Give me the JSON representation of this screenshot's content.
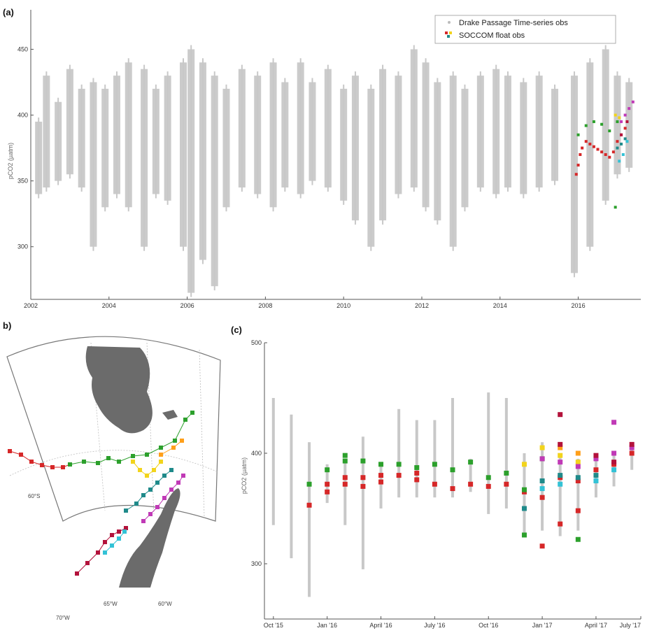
{
  "panels": {
    "a": {
      "label": "(a)"
    },
    "b": {
      "label": "b)"
    },
    "c": {
      "label": "(c)"
    }
  },
  "legend": {
    "dpts": "Drake Passage Time-series obs",
    "soccom": "SOCCOM float obs"
  },
  "map": {
    "lat_labels": [
      "60°S"
    ],
    "lon_labels": [
      "70°W",
      "65°W",
      "60°W"
    ],
    "colors": {
      "land": "#6b6b6b",
      "grid": "#bdbdbd"
    }
  },
  "colors": {
    "dpts": "#c8c8c8",
    "red": "#d62728",
    "green": "#2ca02c",
    "yellow": "#f2d41c",
    "orange": "#ff9f1a",
    "teal": "#1f8a8a",
    "cyan": "#33c2d6",
    "magenta": "#c039b6",
    "crimson": "#b3123b"
  },
  "chart_data": [
    {
      "panel": "a",
      "type": "scatter",
      "title": "",
      "ylabel": "pCO2 (µatm)",
      "xlabel": "",
      "xlim": [
        2002,
        2017.6
      ],
      "ylim": [
        260,
        480
      ],
      "xticks": [
        "2002",
        "2004",
        "2006",
        "2008",
        "2010",
        "2012",
        "2014",
        "2016"
      ],
      "yticks": [
        "300",
        "350",
        "400",
        "450"
      ],
      "legend_position": "top-right",
      "series": [
        {
          "name": "Drake Passage Time-series obs",
          "kind": "range_bars",
          "ranges": [
            [
              2002.2,
              340,
              395
            ],
            [
              2002.4,
              345,
              430
            ],
            [
              2002.7,
              350,
              410
            ],
            [
              2003.0,
              355,
              435
            ],
            [
              2003.3,
              345,
              420
            ],
            [
              2003.6,
              300,
              425
            ],
            [
              2003.9,
              330,
              420
            ],
            [
              2004.2,
              340,
              430
            ],
            [
              2004.5,
              330,
              440
            ],
            [
              2004.9,
              300,
              435
            ],
            [
              2005.2,
              340,
              420
            ],
            [
              2005.5,
              335,
              430
            ],
            [
              2005.9,
              300,
              440
            ],
            [
              2006.1,
              265,
              450
            ],
            [
              2006.4,
              290,
              440
            ],
            [
              2006.7,
              270,
              430
            ],
            [
              2007.0,
              330,
              420
            ],
            [
              2007.4,
              345,
              435
            ],
            [
              2007.8,
              340,
              430
            ],
            [
              2008.2,
              330,
              440
            ],
            [
              2008.5,
              345,
              425
            ],
            [
              2008.9,
              340,
              440
            ],
            [
              2009.2,
              350,
              425
            ],
            [
              2009.6,
              345,
              435
            ],
            [
              2010.0,
              335,
              420
            ],
            [
              2010.3,
              320,
              430
            ],
            [
              2010.7,
              300,
              420
            ],
            [
              2011.0,
              320,
              435
            ],
            [
              2011.4,
              340,
              430
            ],
            [
              2011.8,
              345,
              450
            ],
            [
              2012.1,
              330,
              440
            ],
            [
              2012.4,
              320,
              425
            ],
            [
              2012.8,
              300,
              430
            ],
            [
              2013.1,
              330,
              420
            ],
            [
              2013.5,
              345,
              430
            ],
            [
              2013.9,
              340,
              435
            ],
            [
              2014.2,
              345,
              430
            ],
            [
              2014.6,
              340,
              425
            ],
            [
              2015.0,
              345,
              430
            ],
            [
              2015.4,
              350,
              420
            ],
            [
              2015.9,
              280,
              430
            ],
            [
              2016.3,
              300,
              440
            ],
            [
              2016.7,
              335,
              450
            ],
            [
              2017.0,
              355,
              430
            ],
            [
              2017.3,
              360,
              425
            ]
          ]
        },
        {
          "name": "SOCCOM float obs",
          "kind": "colored_points",
          "points": [
            [
              2015.95,
              355,
              "red"
            ],
            [
              2016.0,
              362,
              "red"
            ],
            [
              2016.05,
              370,
              "red"
            ],
            [
              2016.1,
              375,
              "red"
            ],
            [
              2016.2,
              380,
              "red"
            ],
            [
              2016.3,
              378,
              "red"
            ],
            [
              2016.4,
              376,
              "red"
            ],
            [
              2016.5,
              374,
              "red"
            ],
            [
              2016.6,
              372,
              "red"
            ],
            [
              2016.7,
              370,
              "red"
            ],
            [
              2016.8,
              368,
              "red"
            ],
            [
              2016.9,
              372,
              "red"
            ],
            [
              2017.0,
              380,
              "red"
            ],
            [
              2017.1,
              385,
              "red"
            ],
            [
              2017.2,
              390,
              "red"
            ],
            [
              2016.0,
              385,
              "green"
            ],
            [
              2016.2,
              392,
              "green"
            ],
            [
              2016.4,
              395,
              "green"
            ],
            [
              2016.6,
              393,
              "green"
            ],
            [
              2016.8,
              388,
              "green"
            ],
            [
              2017.0,
              395,
              "green"
            ],
            [
              2016.95,
              330,
              "green"
            ],
            [
              2016.95,
              400,
              "yellow"
            ],
            [
              2017.05,
              398,
              "yellow"
            ],
            [
              2017.0,
              375,
              "teal"
            ],
            [
              2017.1,
              378,
              "teal"
            ],
            [
              2017.2,
              382,
              "teal"
            ],
            [
              2017.05,
              365,
              "cyan"
            ],
            [
              2017.15,
              370,
              "cyan"
            ],
            [
              2017.25,
              380,
              "cyan"
            ],
            [
              2017.1,
              395,
              "magenta"
            ],
            [
              2017.2,
              400,
              "magenta"
            ],
            [
              2017.3,
              405,
              "magenta"
            ],
            [
              2017.4,
              410,
              "magenta"
            ],
            [
              2017.1,
              385,
              "crimson"
            ],
            [
              2017.25,
              395,
              "crimson"
            ]
          ]
        }
      ]
    },
    {
      "panel": "c",
      "type": "scatter",
      "title": "",
      "ylabel": "pCO2 (µatm)",
      "xlabel": "",
      "xlim": [
        0,
        21
      ],
      "ylim": [
        250,
        500
      ],
      "xticks": [
        {
          "label": "Oct '15",
          "pos": 0.5
        },
        {
          "label": "Jan '16",
          "pos": 3.5
        },
        {
          "label": "April '16",
          "pos": 6.5
        },
        {
          "label": "July '16",
          "pos": 9.5
        },
        {
          "label": "Oct '16",
          "pos": 12.5
        },
        {
          "label": "Jan '17",
          "pos": 15.5
        },
        {
          "label": "April '17",
          "pos": 18.5
        },
        {
          "label": "July '17",
          "pos": 21
        }
      ],
      "yticks": [
        "300",
        "400",
        "500"
      ],
      "series": [
        {
          "name": "Drake Passage Time-series obs",
          "kind": "range_bars",
          "ranges": [
            [
              0.5,
              335,
              450
            ],
            [
              1.5,
              305,
              435
            ],
            [
              2.5,
              270,
              410
            ],
            [
              3.5,
              355,
              390
            ],
            [
              4.5,
              335,
              395
            ],
            [
              5.5,
              295,
              415
            ],
            [
              6.5,
              350,
              390
            ],
            [
              7.5,
              360,
              440
            ],
            [
              8.5,
              360,
              430
            ],
            [
              9.5,
              360,
              430
            ],
            [
              10.5,
              360,
              450
            ],
            [
              11.5,
              365,
              395
            ],
            [
              12.5,
              345,
              455
            ],
            [
              13.5,
              350,
              450
            ],
            [
              14.5,
              325,
              400
            ],
            [
              15.5,
              330,
              410
            ],
            [
              16.5,
              325,
              400
            ],
            [
              17.5,
              330,
              395
            ],
            [
              18.5,
              360,
              395
            ],
            [
              19.5,
              370,
              400
            ],
            [
              20.5,
              385,
              410
            ]
          ]
        },
        {
          "name": "SOCCOM float obs",
          "kind": "colored_points",
          "points": [
            [
              2.5,
              353,
              "red"
            ],
            [
              3.5,
              365,
              "red"
            ],
            [
              3.5,
              372,
              "red"
            ],
            [
              4.5,
              372,
              "red"
            ],
            [
              4.5,
              378,
              "red"
            ],
            [
              5.5,
              370,
              "red"
            ],
            [
              5.5,
              378,
              "red"
            ],
            [
              6.5,
              374,
              "red"
            ],
            [
              6.5,
              380,
              "red"
            ],
            [
              7.5,
              380,
              "red"
            ],
            [
              8.5,
              376,
              "red"
            ],
            [
              8.5,
              382,
              "red"
            ],
            [
              9.5,
              372,
              "red"
            ],
            [
              10.5,
              368,
              "red"
            ],
            [
              11.5,
              372,
              "red"
            ],
            [
              12.5,
              370,
              "red"
            ],
            [
              13.5,
              372,
              "red"
            ],
            [
              14.5,
              365,
              "red"
            ],
            [
              15.5,
              360,
              "red"
            ],
            [
              15.5,
              316,
              "red"
            ],
            [
              16.5,
              336,
              "red"
            ],
            [
              16.5,
              378,
              "red"
            ],
            [
              17.5,
              348,
              "red"
            ],
            [
              17.5,
              375,
              "red"
            ],
            [
              18.5,
              385,
              "red"
            ],
            [
              19.5,
              390,
              "red"
            ],
            [
              20.5,
              400,
              "red"
            ],
            [
              2.5,
              372,
              "green"
            ],
            [
              3.5,
              385,
              "green"
            ],
            [
              4.5,
              393,
              "green"
            ],
            [
              4.5,
              398,
              "green"
            ],
            [
              5.5,
              393,
              "green"
            ],
            [
              6.5,
              390,
              "green"
            ],
            [
              7.5,
              390,
              "green"
            ],
            [
              8.5,
              387,
              "green"
            ],
            [
              9.5,
              390,
              "green"
            ],
            [
              10.5,
              385,
              "green"
            ],
            [
              11.5,
              392,
              "green"
            ],
            [
              12.5,
              378,
              "green"
            ],
            [
              13.5,
              382,
              "green"
            ],
            [
              14.5,
              367,
              "green"
            ],
            [
              14.5,
              326,
              "green"
            ],
            [
              17.5,
              322,
              "green"
            ],
            [
              15.5,
              395,
              "green"
            ],
            [
              14.5,
              390,
              "yellow"
            ],
            [
              15.5,
              405,
              "yellow"
            ],
            [
              16.5,
              398,
              "yellow"
            ],
            [
              17.5,
              392,
              "yellow"
            ],
            [
              16.5,
              405,
              "orange"
            ],
            [
              17.5,
              400,
              "orange"
            ],
            [
              14.5,
              350,
              "teal"
            ],
            [
              15.5,
              375,
              "teal"
            ],
            [
              16.5,
              380,
              "teal"
            ],
            [
              17.5,
              378,
              "teal"
            ],
            [
              18.5,
              380,
              "teal"
            ],
            [
              15.5,
              368,
              "cyan"
            ],
            [
              16.5,
              372,
              "cyan"
            ],
            [
              18.5,
              375,
              "cyan"
            ],
            [
              19.5,
              385,
              "cyan"
            ],
            [
              15.5,
              395,
              "magenta"
            ],
            [
              16.5,
              392,
              "magenta"
            ],
            [
              17.5,
              388,
              "magenta"
            ],
            [
              18.5,
              395,
              "magenta"
            ],
            [
              19.5,
              400,
              "magenta"
            ],
            [
              20.5,
              405,
              "magenta"
            ],
            [
              19.5,
              428,
              "magenta"
            ],
            [
              16.5,
              408,
              "crimson"
            ],
            [
              16.5,
              435,
              "crimson"
            ],
            [
              18.5,
              398,
              "crimson"
            ],
            [
              19.5,
              392,
              "crimson"
            ],
            [
              20.5,
              408,
              "crimson"
            ]
          ]
        }
      ]
    }
  ]
}
